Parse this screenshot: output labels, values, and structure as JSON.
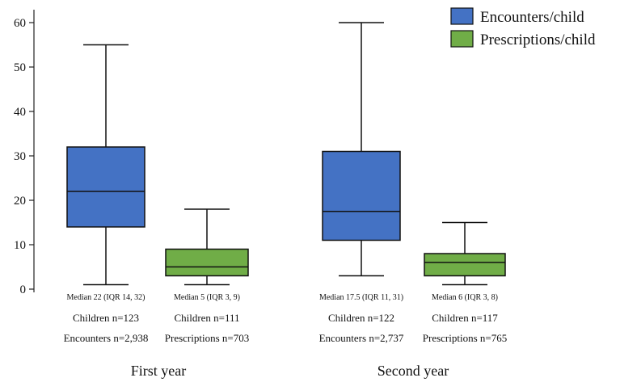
{
  "chart_data": {
    "type": "box",
    "title": "",
    "xlabel": "",
    "ylabel": "",
    "ylim": [
      0,
      60
    ],
    "yticks": [
      "0",
      "10",
      "20",
      "30",
      "40",
      "50",
      "60"
    ],
    "grid": false,
    "legend_position": "top-right",
    "series": [
      {
        "name": "Encounters/child",
        "color": "#4472c4"
      },
      {
        "name": "Prescriptions/child",
        "color": "#70ad47"
      }
    ],
    "groups": [
      {
        "label": "First year",
        "boxes": [
          {
            "series": "Encounters/child",
            "min": 1,
            "q1": 14,
            "median": 22,
            "q3": 32,
            "max": 55,
            "median_label": "Median 22 (IQR 14, 32)",
            "count_lines": [
              "Children n=123",
              "Encounters n=2,938"
            ]
          },
          {
            "series": "Prescriptions/child",
            "min": 1,
            "q1": 3,
            "median": 5,
            "q3": 9,
            "max": 18,
            "median_label": "Median 5 (IQR 3, 9)",
            "count_lines": [
              "Children n=111",
              "Prescriptions n=703"
            ]
          }
        ]
      },
      {
        "label": "Second year",
        "boxes": [
          {
            "series": "Encounters/child",
            "min": 3,
            "q1": 11,
            "median": 17.5,
            "q3": 31,
            "max": 60,
            "median_label": "Median 17.5 (IQR 11, 31)",
            "count_lines": [
              "Children n=122",
              "Encounters n=2,737"
            ]
          },
          {
            "series": "Prescriptions/child",
            "min": 1,
            "q1": 3,
            "median": 6,
            "q3": 8,
            "max": 15,
            "median_label": "Median 6 (IQR 3, 8)",
            "count_lines": [
              "Children n=117",
              "Prescriptions n=765"
            ]
          }
        ]
      }
    ]
  }
}
